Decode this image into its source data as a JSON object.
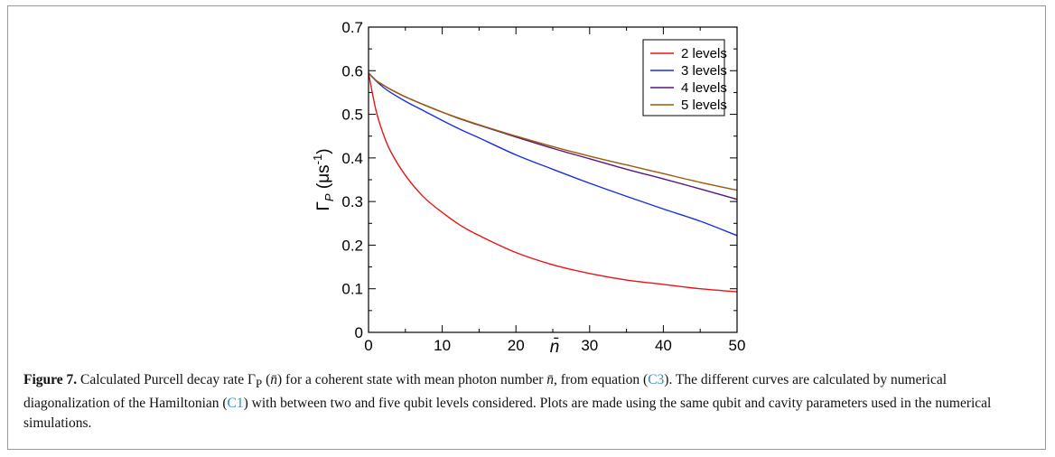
{
  "figure": {
    "caption": {
      "label": "Figure 7.",
      "t1": " Calculated Purcell decay rate Γ",
      "t1_sub": "P",
      "t2": " (",
      "nbar1": "n̄",
      "t3": ") for a coherent state with mean photon number ",
      "nbar2": "n̄",
      "t4": ", from equation (",
      "ref1": "C3",
      "t5": "). The different curves are calculated by numerical diagonalization of the Hamiltonian (",
      "ref2": "C1",
      "t6": ") with between two and five qubit levels considered. Plots are made using the same qubit and cavity parameters used in the numerical simulations."
    },
    "colors": {
      "ref_link": "#3b8ab8"
    }
  },
  "chart_data": {
    "type": "line",
    "xlabel": "n̄",
    "ylabel_main": "Γ",
    "ylabel_sub": "P",
    "ylabel_unit": " (μs",
    "ylabel_sup": "-1",
    "ylabel_close": ")",
    "xlim": [
      0,
      50
    ],
    "ylim": [
      0,
      0.7
    ],
    "xticks": [
      0,
      10,
      20,
      30,
      40,
      50
    ],
    "yticks": [
      0,
      0.1,
      0.2,
      0.3,
      0.4,
      0.5,
      0.6,
      0.7
    ],
    "xtick_labels": [
      "0",
      "10",
      "20",
      "30",
      "40",
      "50"
    ],
    "ytick_labels": [
      "0",
      "0.1",
      "0.2",
      "0.3",
      "0.4",
      "0.5",
      "0.6",
      "0.7"
    ],
    "legend_position": "top-right",
    "x": [
      0,
      1,
      2,
      3,
      5,
      7.5,
      10,
      12.5,
      15,
      20,
      25,
      30,
      35,
      40,
      45,
      50
    ],
    "series": [
      {
        "name": "2 levels",
        "color": "#e8141b",
        "values": [
          0.595,
          0.51,
          0.455,
          0.415,
          0.36,
          0.31,
          0.275,
          0.245,
          0.222,
          0.183,
          0.155,
          0.135,
          0.12,
          0.11,
          0.1,
          0.093
        ]
      },
      {
        "name": "3 levels",
        "color": "#1a2ee0",
        "values": [
          0.595,
          0.577,
          0.562,
          0.55,
          0.53,
          0.508,
          0.486,
          0.465,
          0.446,
          0.407,
          0.374,
          0.342,
          0.312,
          0.283,
          0.255,
          0.222
        ]
      },
      {
        "name": "4 levels",
        "color": "#5a1482",
        "values": [
          0.595,
          0.578,
          0.567,
          0.557,
          0.54,
          0.522,
          0.505,
          0.489,
          0.475,
          0.448,
          0.422,
          0.398,
          0.374,
          0.352,
          0.329,
          0.305
        ]
      },
      {
        "name": "5 levels",
        "color": "#9b5a0a",
        "values": [
          0.595,
          0.578,
          0.567,
          0.557,
          0.54,
          0.522,
          0.505,
          0.49,
          0.476,
          0.45,
          0.426,
          0.404,
          0.384,
          0.364,
          0.344,
          0.326
        ]
      }
    ]
  }
}
